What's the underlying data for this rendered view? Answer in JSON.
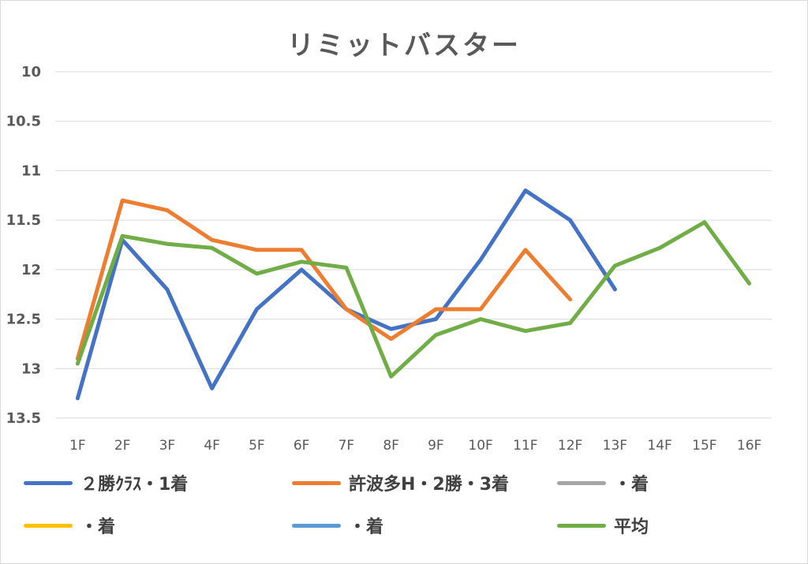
{
  "chart_data": {
    "type": "line",
    "title": "リミットバスター",
    "categories": [
      "1F",
      "2F",
      "3F",
      "4F",
      "5F",
      "6F",
      "7F",
      "8F",
      "9F",
      "10F",
      "11F",
      "12F",
      "13F",
      "14F",
      "15F",
      "16F"
    ],
    "yticks": [
      "10",
      "10.5",
      "11",
      "11.5",
      "12",
      "12.5",
      "13",
      "13.5"
    ],
    "ylim": [
      10,
      13.5
    ],
    "y_reversed": true,
    "grid": true,
    "legend_position": "bottom",
    "series": [
      {
        "name": "２勝ｸﾗｽ・1着",
        "color": "#4472c4",
        "values": [
          13.3,
          11.7,
          12.2,
          13.2,
          12.4,
          12.0,
          12.4,
          12.6,
          12.5,
          11.9,
          11.2,
          11.5,
          12.2,
          null,
          null,
          null
        ]
      },
      {
        "name": "許波多H・2勝・3着",
        "color": "#ed7d31",
        "values": [
          12.9,
          11.3,
          11.4,
          11.7,
          11.8,
          11.8,
          12.4,
          12.7,
          12.4,
          12.4,
          11.8,
          12.3,
          null,
          null,
          null,
          null
        ]
      },
      {
        "name": "・着",
        "color": "#a5a5a5",
        "values": [
          null,
          null,
          null,
          null,
          null,
          null,
          null,
          null,
          null,
          null,
          null,
          null,
          null,
          null,
          null,
          null
        ]
      },
      {
        "name": "・着",
        "color": "#ffc000",
        "values": [
          null,
          null,
          null,
          null,
          null,
          null,
          null,
          null,
          null,
          null,
          null,
          null,
          null,
          null,
          null,
          null
        ]
      },
      {
        "name": "・着",
        "color": "#5b9bd5",
        "values": [
          null,
          null,
          null,
          null,
          null,
          null,
          null,
          null,
          null,
          null,
          null,
          null,
          null,
          null,
          null,
          null
        ]
      },
      {
        "name": "平均",
        "color": "#70ad47",
        "values": [
          12.95,
          11.66,
          11.74,
          11.78,
          12.04,
          11.92,
          11.98,
          13.08,
          12.66,
          12.5,
          12.62,
          12.54,
          11.96,
          11.78,
          11.52,
          12.14
        ]
      }
    ]
  }
}
